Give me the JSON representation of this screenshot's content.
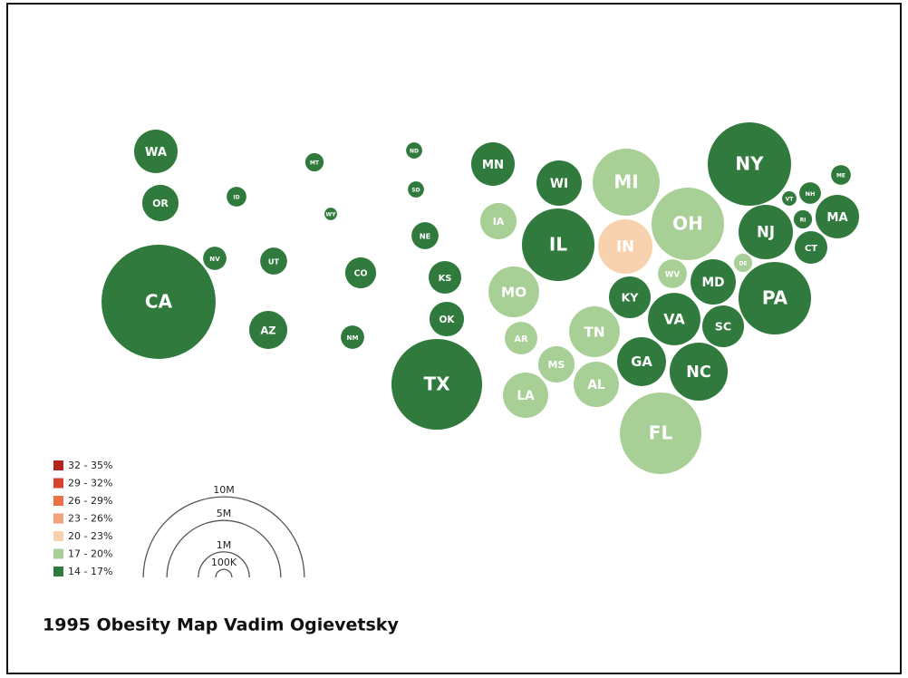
{
  "title": "1995 Obesity Map Vadim Ogievetsky",
  "legend": {
    "bins": [
      {
        "label": "32 - 35%",
        "color": "#b2241f"
      },
      {
        "label": "29 - 32%",
        "color": "#d6432f"
      },
      {
        "label": "26 - 29%",
        "color": "#ec7243"
      },
      {
        "label": "23 - 26%",
        "color": "#f2a37c"
      },
      {
        "label": "20 - 23%",
        "color": "#f8d2ae"
      },
      {
        "label": "17 - 20%",
        "color": "#a8cf96"
      },
      {
        "label": "14 - 17%",
        "color": "#2f7a3c"
      }
    ]
  },
  "size_legend": [
    {
      "value": 10000000,
      "label": "10M"
    },
    {
      "value": 5000000,
      "label": "5M"
    },
    {
      "value": 1000000,
      "label": "1M"
    },
    {
      "value": 100000,
      "label": "100K"
    }
  ],
  "states": [
    {
      "label": "WA",
      "bin": 6,
      "population": 730000
    },
    {
      "label": "OR",
      "bin": 6,
      "population": 510000
    },
    {
      "label": "CA",
      "bin": 6,
      "population": 5020000
    },
    {
      "label": "ID",
      "bin": 6,
      "population": 150000
    },
    {
      "label": "NV",
      "bin": 6,
      "population": 210000
    },
    {
      "label": "UT",
      "bin": 6,
      "population": 280000
    },
    {
      "label": "AZ",
      "bin": 6,
      "population": 560000
    },
    {
      "label": "MT",
      "bin": 6,
      "population": 130000
    },
    {
      "label": "WY",
      "bin": 6,
      "population": 60000
    },
    {
      "label": "CO",
      "bin": 6,
      "population": 370000
    },
    {
      "label": "NM",
      "bin": 6,
      "population": 210000
    },
    {
      "label": "ND",
      "bin": 6,
      "population": 100000
    },
    {
      "label": "SD",
      "bin": 6,
      "population": 100000
    },
    {
      "label": "NE",
      "bin": 6,
      "population": 280000
    },
    {
      "label": "KS",
      "bin": 6,
      "population": 410000
    },
    {
      "label": "OK",
      "bin": 6,
      "population": 460000
    },
    {
      "label": "TX",
      "bin": 6,
      "population": 3170000
    },
    {
      "label": "MN",
      "bin": 6,
      "population": 730000
    },
    {
      "label": "IA",
      "bin": 5,
      "population": 510000
    },
    {
      "label": "MO",
      "bin": 5,
      "population": 990000
    },
    {
      "label": "AR",
      "bin": 5,
      "population": 410000
    },
    {
      "label": "LA",
      "bin": 5,
      "population": 790000
    },
    {
      "label": "MS",
      "bin": 5,
      "population": 510000
    },
    {
      "label": "WI",
      "bin": 6,
      "population": 790000
    },
    {
      "label": "IL",
      "bin": 6,
      "population": 2030000
    },
    {
      "label": "MI",
      "bin": 5,
      "population": 1730000
    },
    {
      "label": "IN",
      "bin": 4,
      "population": 1140000
    },
    {
      "label": "OH",
      "bin": 5,
      "population": 2030000
    },
    {
      "label": "KY",
      "bin": 6,
      "population": 670000
    },
    {
      "label": "TN",
      "bin": 5,
      "population": 990000
    },
    {
      "label": "AL",
      "bin": 5,
      "population": 790000
    },
    {
      "label": "GA",
      "bin": 6,
      "population": 920000
    },
    {
      "label": "FL",
      "bin": 5,
      "population": 2560000
    },
    {
      "label": "WV",
      "bin": 5,
      "population": 320000
    },
    {
      "label": "VA",
      "bin": 6,
      "population": 1060000
    },
    {
      "label": "NC",
      "bin": 6,
      "population": 1300000
    },
    {
      "label": "SC",
      "bin": 6,
      "population": 670000
    },
    {
      "label": "MD",
      "bin": 6,
      "population": 790000
    },
    {
      "label": "DE",
      "bin": 5,
      "population": 130000
    },
    {
      "label": "NJ",
      "bin": 6,
      "population": 1140000
    },
    {
      "label": "PA",
      "bin": 6,
      "population": 2030000
    },
    {
      "label": "NY",
      "bin": 6,
      "population": 2680000
    },
    {
      "label": "VT",
      "bin": 6,
      "population": 80000
    },
    {
      "label": "NH",
      "bin": 6,
      "population": 180000
    },
    {
      "label": "RI",
      "bin": 6,
      "population": 130000
    },
    {
      "label": "CT",
      "bin": 6,
      "population": 410000
    },
    {
      "label": "MA",
      "bin": 6,
      "population": 730000
    },
    {
      "label": "ME",
      "bin": 6,
      "population": 150000
    }
  ]
}
